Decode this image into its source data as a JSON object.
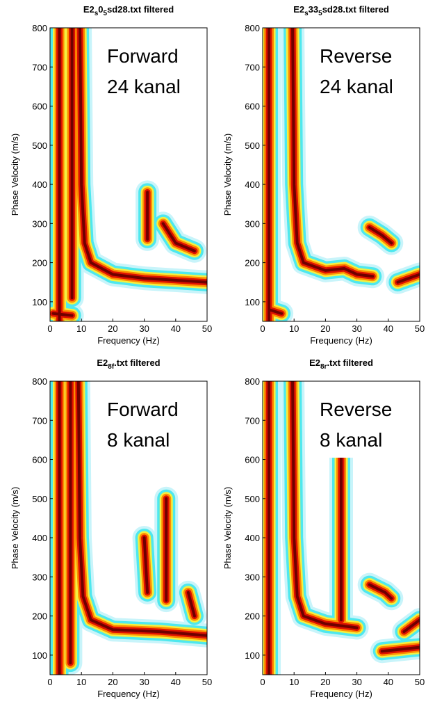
{
  "chart_data": [
    {
      "type": "heatmap",
      "title": [
        "E2",
        "s",
        "0",
        "5",
        "sd28.txt filtered"
      ],
      "annotation": [
        "Forward",
        "24 kanal"
      ],
      "xlabel": "Frequency (Hz)",
      "ylabel": "Phase Velocity (m/s)",
      "xlim": [
        0,
        50
      ],
      "ylim": [
        50,
        800
      ],
      "xticks": [
        0,
        10,
        20,
        30,
        40,
        50
      ],
      "yticks": [
        100,
        200,
        300,
        400,
        500,
        600,
        700,
        800
      ]
    },
    {
      "type": "heatmap",
      "title": [
        "E2",
        "s",
        "33",
        "5",
        "sd28.txt filtered"
      ],
      "annotation": [
        "Reverse",
        "24 kanal"
      ],
      "xlabel": "Frequency (Hz)",
      "ylabel": "Phase Velocity (m/s)",
      "xlim": [
        0,
        50
      ],
      "ylim": [
        50,
        800
      ],
      "xticks": [
        0,
        10,
        20,
        30,
        40,
        50
      ],
      "yticks": [
        100,
        200,
        300,
        400,
        500,
        600,
        700,
        800
      ]
    },
    {
      "type": "heatmap",
      "title": [
        "E2",
        "8f",
        ".txt filtered"
      ],
      "annotation": [
        "Forward",
        "8 kanal"
      ],
      "xlabel": "Frequency (Hz)",
      "ylabel": "Phase Velocity (m/s)",
      "xlim": [
        0,
        50
      ],
      "ylim": [
        50,
        800
      ],
      "xticks": [
        0,
        10,
        20,
        30,
        40,
        50
      ],
      "yticks": [
        100,
        200,
        300,
        400,
        500,
        600,
        700,
        800
      ]
    },
    {
      "type": "heatmap",
      "title": [
        "E2",
        "8r",
        ".txt filtered"
      ],
      "annotation": [
        "Reverse",
        "8 kanal"
      ],
      "xlabel": "Frequency (Hz)",
      "ylabel": "Phase Velocity (m/s)",
      "xlim": [
        0,
        50
      ],
      "ylim": [
        50,
        800
      ],
      "xticks": [
        0,
        10,
        20,
        30,
        40,
        50
      ],
      "yticks": [
        100,
        200,
        300,
        400,
        500,
        600,
        700,
        800
      ]
    }
  ]
}
